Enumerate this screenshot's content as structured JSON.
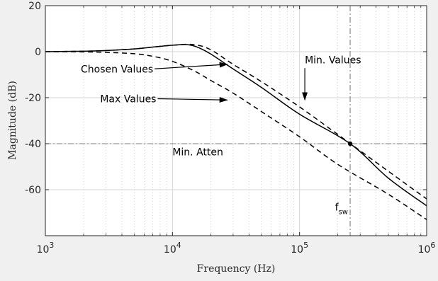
{
  "chart_data": {
    "type": "line",
    "xlabel": "Frequency (Hz)",
    "ylabel": "Magnitude (dB)",
    "xscale": "log",
    "xlim": [
      1000,
      1000000
    ],
    "ylim": [
      -80,
      20
    ],
    "grid": true,
    "x_ticks": [
      {
        "value": 1000,
        "base": "10",
        "exp": "3"
      },
      {
        "value": 10000,
        "base": "10",
        "exp": "4"
      },
      {
        "value": 100000,
        "base": "10",
        "exp": "5"
      },
      {
        "value": 1000000,
        "base": "10",
        "exp": "6"
      }
    ],
    "y_ticks": [
      {
        "value": 20,
        "label": "20"
      },
      {
        "value": 0,
        "label": "0"
      },
      {
        "value": -20,
        "label": "-20"
      },
      {
        "value": -40,
        "label": "-40"
      },
      {
        "value": -60,
        "label": "-60"
      }
    ],
    "series": [
      {
        "style": "dashed",
        "color": "#000000",
        "points": [
          [
            1000,
            0
          ],
          [
            2000,
            0.2
          ],
          [
            3000,
            0.5
          ],
          [
            5000,
            1.2
          ],
          [
            7000,
            2.0
          ],
          [
            10000,
            2.8
          ],
          [
            13000,
            3.2
          ],
          [
            15000,
            3.0
          ],
          [
            18000,
            2.0
          ],
          [
            22000,
            -0.5
          ],
          [
            30000,
            -5.5
          ],
          [
            50000,
            -13
          ],
          [
            100000,
            -24
          ],
          [
            200000,
            -36
          ],
          [
            500000,
            -52
          ],
          [
            1000000,
            -64
          ]
        ]
      },
      {
        "style": "solid",
        "color": "#000000",
        "points": [
          [
            1000,
            0
          ],
          [
            2000,
            0.2
          ],
          [
            3000,
            0.5
          ],
          [
            5000,
            1.2
          ],
          [
            7000,
            2.0
          ],
          [
            10000,
            2.8
          ],
          [
            12500,
            3.1
          ],
          [
            14000,
            2.8
          ],
          [
            16000,
            1.8
          ],
          [
            20000,
            -1.0
          ],
          [
            30000,
            -7.5
          ],
          [
            50000,
            -15.5
          ],
          [
            100000,
            -27.2
          ],
          [
            250000,
            -40
          ],
          [
            500000,
            -55
          ],
          [
            1000000,
            -67
          ]
        ]
      },
      {
        "style": "dashed",
        "color": "#000000",
        "points": [
          [
            1000,
            0
          ],
          [
            2000,
            -0.1
          ],
          [
            3000,
            -0.3
          ],
          [
            5000,
            -0.9
          ],
          [
            7000,
            -2.0
          ],
          [
            10000,
            -4.2
          ],
          [
            15000,
            -8.5
          ],
          [
            20000,
            -12.5
          ],
          [
            30000,
            -18
          ],
          [
            50000,
            -26
          ],
          [
            100000,
            -37
          ],
          [
            200000,
            -49
          ],
          [
            500000,
            -62
          ],
          [
            1000000,
            -73
          ]
        ]
      }
    ],
    "reference_lines": [
      {
        "orientation": "horizontal",
        "value": -40,
        "style": "dash-dot",
        "color": "#7f7f7f"
      },
      {
        "orientation": "vertical",
        "value": 250000,
        "style": "dash-dot",
        "color": "#7f7f7f"
      }
    ],
    "marker": {
      "x": 250000,
      "y": -40
    },
    "annotations": [
      {
        "text": "Chosen Values",
        "x": 1900,
        "y": -9,
        "arrow_to": [
          27000,
          -5.5
        ]
      },
      {
        "text": "Max Values",
        "x": 2700,
        "y": -22,
        "arrow_to": [
          27000,
          -21
        ]
      },
      {
        "text": "Min. Values",
        "x": 110000,
        "y": -5,
        "arrow_to": [
          110000,
          -21
        ]
      },
      {
        "text": "Min. Atten",
        "x": 10000,
        "y": -45
      },
      {
        "text": "f",
        "sub": "sw",
        "x": 190000,
        "y": -69
      }
    ]
  }
}
